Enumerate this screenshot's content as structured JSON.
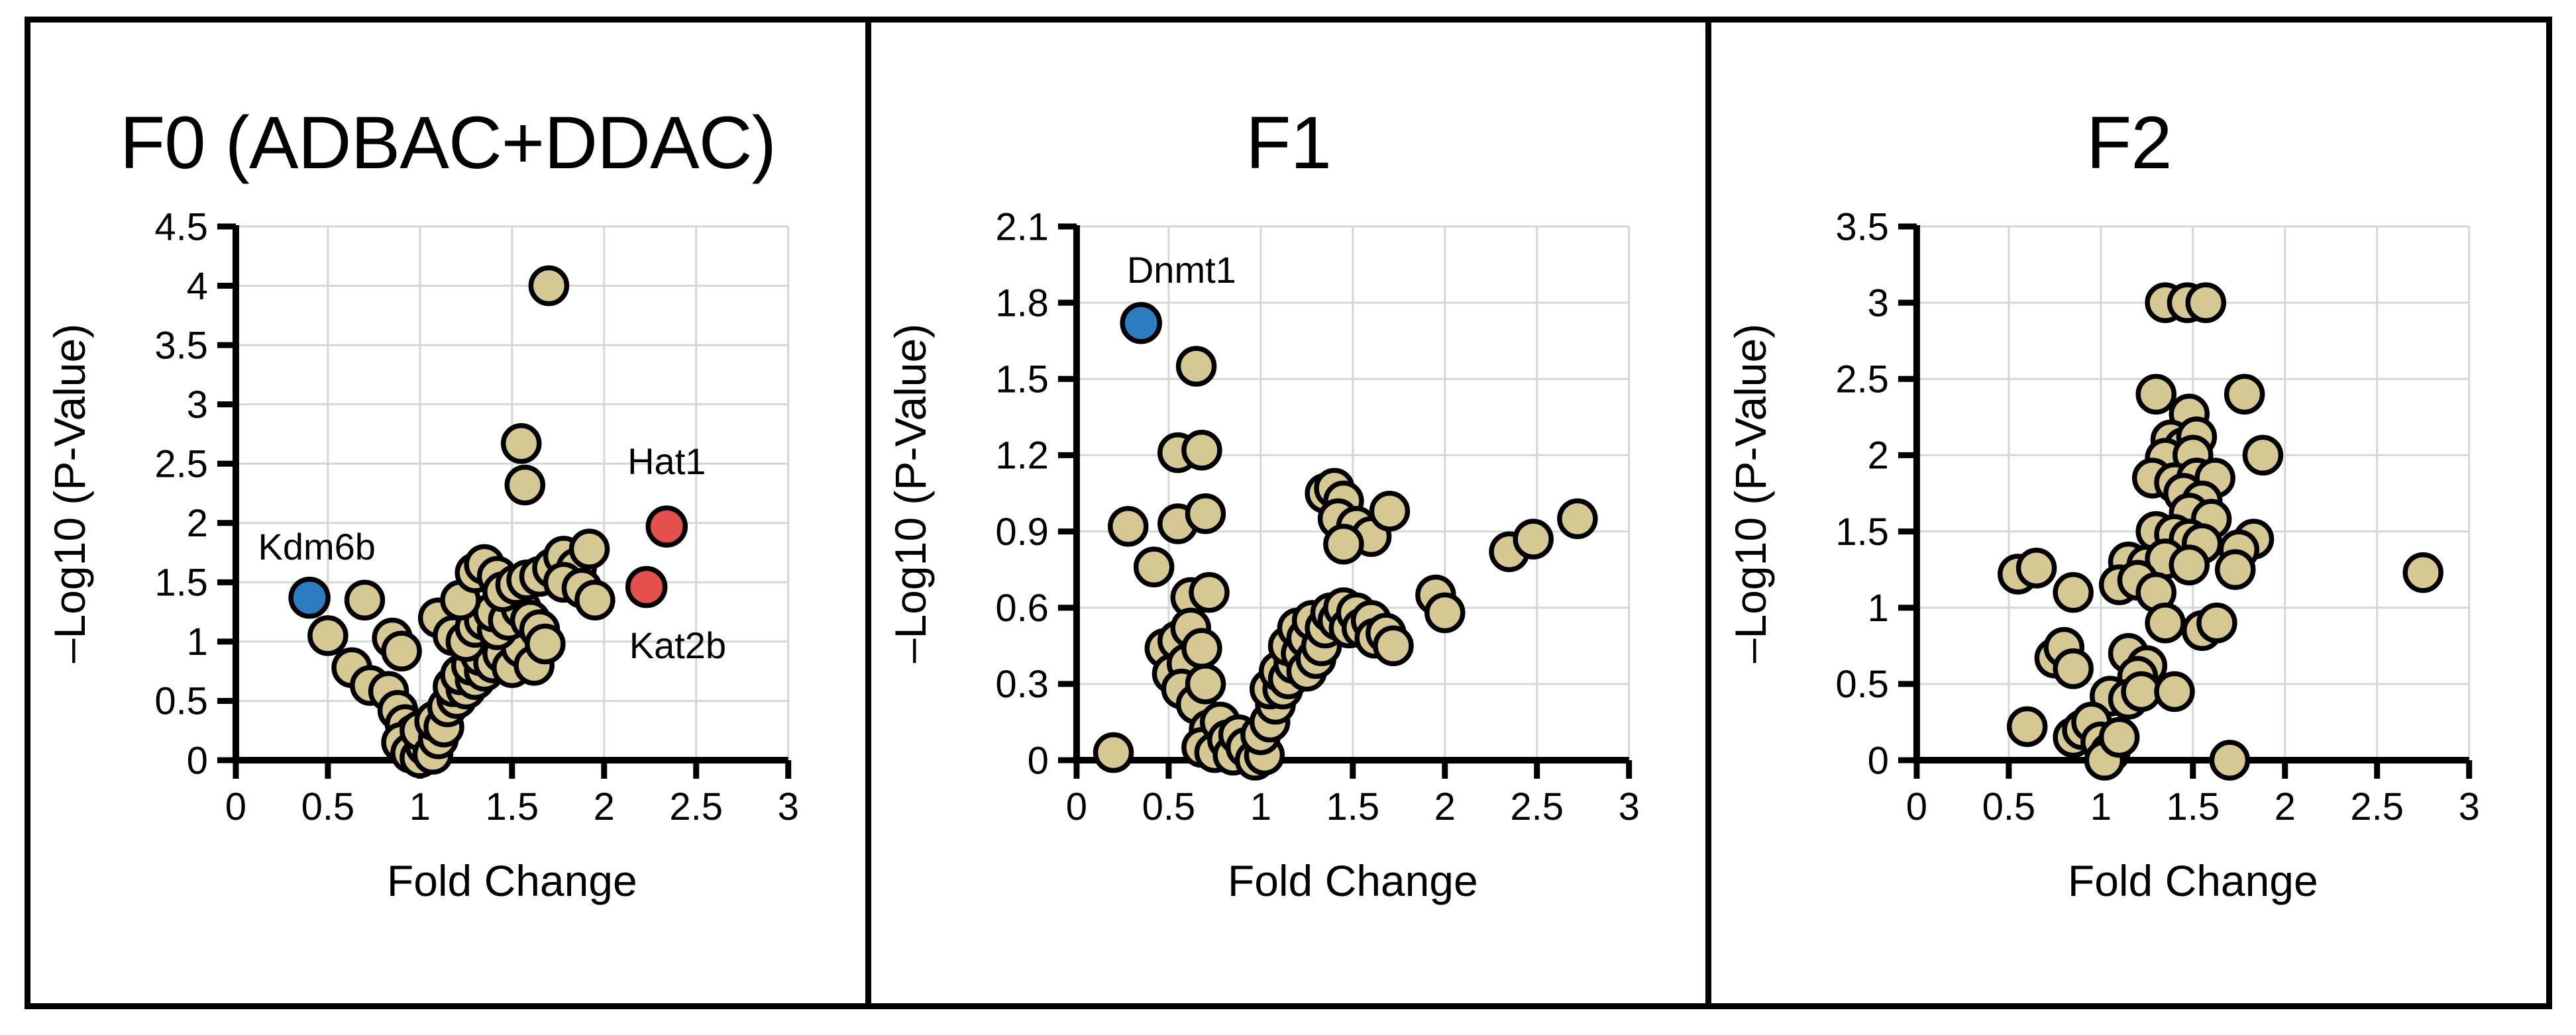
{
  "figure": {
    "style": {
      "background": "#ffffff",
      "frame_color": "#000000",
      "grid_color": "#d6d6d6",
      "axis_color": "#000000",
      "text_color": "#000000",
      "marker_stroke": "#000000",
      "default_marker_fill": "#d5c892",
      "highlight_down_fill": "#2b7dbf",
      "highlight_up_fill": "#e4504b"
    }
  },
  "chart_data": [
    {
      "type": "scatter",
      "title": "F0 (ADBAC+DDAC)",
      "xlabel": "Fold Change",
      "ylabel": "–Log10 (P-Value)",
      "xlim": [
        0,
        3
      ],
      "ylim": [
        0,
        4.5
      ],
      "grid": true,
      "legend": "none",
      "x_ticks": {
        "values": [
          0,
          0.5,
          1,
          1.5,
          2,
          2.5,
          3
        ],
        "labels": [
          "0",
          "0.5",
          "1",
          "1.5",
          "2",
          "2.5",
          "3"
        ]
      },
      "y_ticks": {
        "values": [
          0,
          0.5,
          1,
          1.5,
          2,
          2.5,
          3,
          3.5,
          4,
          4.5
        ],
        "labels": [
          "0",
          "0.5",
          "1",
          "1.5",
          "2",
          "2.5",
          "3",
          "3.5",
          "4",
          "4.5"
        ]
      },
      "series": [
        {
          "name": "proteins",
          "color": "#d5c892",
          "points": [
            [
              1.7,
              4.0
            ],
            [
              1.55,
              2.67
            ],
            [
              1.57,
              2.32
            ],
            [
              0.5,
              1.05
            ],
            [
              0.7,
              1.35
            ],
            [
              0.63,
              0.78
            ],
            [
              0.73,
              0.63
            ],
            [
              0.85,
              1.03
            ],
            [
              0.9,
              0.92
            ],
            [
              0.83,
              0.58
            ],
            [
              0.88,
              0.42
            ],
            [
              0.92,
              0.3
            ],
            [
              0.97,
              0.22
            ],
            [
              0.9,
              0.15
            ],
            [
              0.95,
              0.06
            ],
            [
              1.0,
              0.02
            ],
            [
              1.03,
              0.12
            ],
            [
              1.0,
              0.25
            ],
            [
              1.07,
              0.05
            ],
            [
              1.1,
              0.18
            ],
            [
              1.08,
              0.33
            ],
            [
              1.13,
              0.28
            ],
            [
              1.15,
              0.45
            ],
            [
              1.2,
              0.52
            ],
            [
              1.18,
              0.62
            ],
            [
              1.25,
              0.6
            ],
            [
              1.22,
              0.72
            ],
            [
              1.3,
              0.68
            ],
            [
              1.28,
              0.8
            ],
            [
              1.35,
              0.75
            ],
            [
              1.33,
              0.88
            ],
            [
              1.4,
              0.82
            ],
            [
              1.45,
              0.9
            ],
            [
              1.5,
              0.78
            ],
            [
              1.55,
              0.95
            ],
            [
              1.62,
              0.8
            ],
            [
              1.1,
              1.2
            ],
            [
              1.18,
              1.05
            ],
            [
              1.25,
              1.0
            ],
            [
              1.3,
              1.12
            ],
            [
              1.35,
              1.18
            ],
            [
              1.42,
              1.1
            ],
            [
              1.4,
              1.25
            ],
            [
              1.48,
              1.18
            ],
            [
              1.55,
              1.28
            ],
            [
              1.6,
              1.18
            ],
            [
              1.65,
              1.1
            ],
            [
              1.68,
              0.98
            ],
            [
              1.22,
              1.35
            ],
            [
              1.3,
              1.58
            ],
            [
              1.35,
              1.65
            ],
            [
              1.42,
              1.55
            ],
            [
              1.45,
              1.42
            ],
            [
              1.52,
              1.48
            ],
            [
              1.58,
              1.52
            ],
            [
              1.65,
              1.55
            ],
            [
              1.72,
              1.62
            ],
            [
              1.78,
              1.72
            ],
            [
              1.85,
              1.62
            ],
            [
              1.78,
              1.5
            ],
            [
              1.88,
              1.45
            ],
            [
              1.92,
              1.78
            ],
            [
              1.95,
              1.35
            ]
          ]
        },
        {
          "name": "highlighted-decreased",
          "color": "#2b7dbf",
          "points": [
            [
              0.4,
              1.37
            ]
          ]
        },
        {
          "name": "highlighted-increased",
          "color": "#e4504b",
          "points": [
            [
              2.34,
              1.97
            ],
            [
              2.23,
              1.46
            ]
          ]
        }
      ],
      "annotations": [
        {
          "text": "Kdm6b",
          "x": 0.44,
          "y": 1.8
        },
        {
          "text": "Hat1",
          "x": 2.34,
          "y": 2.52
        },
        {
          "text": "Kat2b",
          "x": 2.4,
          "y": 0.97
        }
      ]
    },
    {
      "type": "scatter",
      "title": "F1",
      "xlabel": "Fold Change",
      "ylabel": "–Log10 (P-Value)",
      "xlim": [
        0,
        3
      ],
      "ylim": [
        0,
        2.1
      ],
      "grid": true,
      "legend": "none",
      "x_ticks": {
        "values": [
          0,
          0.5,
          1,
          1.5,
          2,
          2.5,
          3
        ],
        "labels": [
          "0",
          "0.5",
          "1",
          "1.5",
          "2",
          "2.5",
          "3"
        ]
      },
      "y_ticks": {
        "values": [
          0,
          0.3,
          0.6,
          0.9,
          1.2,
          1.5,
          1.8,
          2.1
        ],
        "labels": [
          "0",
          "0.3",
          "0.6",
          "0.9",
          "1.2",
          "1.5",
          "1.8",
          "2.1"
        ]
      },
      "series": [
        {
          "name": "proteins",
          "color": "#d5c892",
          "points": [
            [
              0.65,
              1.55
            ],
            [
              0.55,
              1.21
            ],
            [
              0.68,
              1.22
            ],
            [
              0.28,
              0.92
            ],
            [
              0.55,
              0.93
            ],
            [
              0.7,
              0.97
            ],
            [
              0.42,
              0.76
            ],
            [
              0.62,
              0.64
            ],
            [
              0.72,
              0.66
            ],
            [
              0.2,
              0.03
            ],
            [
              0.48,
              0.44
            ],
            [
              0.55,
              0.47
            ],
            [
              0.62,
              0.52
            ],
            [
              0.52,
              0.34
            ],
            [
              0.6,
              0.38
            ],
            [
              0.68,
              0.44
            ],
            [
              0.57,
              0.28
            ],
            [
              0.65,
              0.22
            ],
            [
              0.7,
              0.3
            ],
            [
              0.72,
              0.12
            ],
            [
              0.68,
              0.05
            ],
            [
              0.75,
              0.03
            ],
            [
              0.78,
              0.15
            ],
            [
              0.82,
              0.08
            ],
            [
              0.85,
              0.02
            ],
            [
              0.88,
              0.1
            ],
            [
              0.92,
              0.05
            ],
            [
              0.97,
              0.0
            ],
            [
              1.02,
              0.02
            ],
            [
              1.0,
              0.1
            ],
            [
              1.05,
              0.15
            ],
            [
              1.08,
              0.22
            ],
            [
              1.05,
              0.28
            ],
            [
              1.12,
              0.28
            ],
            [
              1.1,
              0.35
            ],
            [
              1.15,
              0.32
            ],
            [
              1.18,
              0.38
            ],
            [
              1.15,
              0.45
            ],
            [
              1.22,
              0.42
            ],
            [
              1.2,
              0.52
            ],
            [
              1.25,
              0.48
            ],
            [
              1.28,
              0.55
            ],
            [
              1.25,
              0.35
            ],
            [
              1.3,
              0.4
            ],
            [
              1.33,
              0.45
            ],
            [
              1.35,
              0.52
            ],
            [
              1.38,
              0.58
            ],
            [
              1.42,
              0.55
            ],
            [
              1.45,
              0.6
            ],
            [
              1.48,
              0.52
            ],
            [
              1.52,
              0.58
            ],
            [
              1.55,
              0.52
            ],
            [
              1.6,
              0.55
            ],
            [
              1.62,
              0.48
            ],
            [
              1.68,
              0.5
            ],
            [
              1.72,
              0.45
            ],
            [
              1.35,
              1.05
            ],
            [
              1.4,
              1.07
            ],
            [
              1.45,
              1.02
            ],
            [
              1.42,
              0.95
            ],
            [
              1.52,
              0.92
            ],
            [
              1.6,
              0.88
            ],
            [
              1.45,
              0.85
            ],
            [
              1.7,
              0.98
            ],
            [
              1.95,
              0.65
            ],
            [
              2.0,
              0.58
            ],
            [
              2.35,
              0.82
            ],
            [
              2.48,
              0.87
            ],
            [
              2.72,
              0.95
            ]
          ]
        },
        {
          "name": "highlighted-decreased",
          "color": "#2b7dbf",
          "points": [
            [
              0.35,
              1.72
            ]
          ]
        }
      ],
      "annotations": [
        {
          "text": "Dnmt1",
          "x": 0.57,
          "y": 1.93
        }
      ]
    },
    {
      "type": "scatter",
      "title": "F2",
      "xlabel": "Fold Change",
      "ylabel": "–Log10 (P-Value)",
      "xlim": [
        0,
        3
      ],
      "ylim": [
        0,
        3.5
      ],
      "grid": true,
      "legend": "none",
      "x_ticks": {
        "values": [
          0,
          0.5,
          1,
          1.5,
          2,
          2.5,
          3
        ],
        "labels": [
          "0",
          "0.5",
          "1",
          "1.5",
          "2",
          "2.5",
          "3"
        ]
      },
      "y_ticks": {
        "values": [
          0,
          0.5,
          1,
          1.5,
          2,
          2.5,
          3,
          3.5
        ],
        "labels": [
          "0",
          "0.5",
          "1",
          "1.5",
          "2",
          "2.5",
          "3",
          "3.5"
        ]
      },
      "series": [
        {
          "name": "proteins",
          "color": "#d5c892",
          "points": [
            [
              1.35,
              3.0
            ],
            [
              1.47,
              3.0
            ],
            [
              1.57,
              3.0
            ],
            [
              1.3,
              2.4
            ],
            [
              1.78,
              2.4
            ],
            [
              1.48,
              2.27
            ],
            [
              1.38,
              2.1
            ],
            [
              1.45,
              2.05
            ],
            [
              1.52,
              2.12
            ],
            [
              1.35,
              1.98
            ],
            [
              1.5,
              2.0
            ],
            [
              1.88,
              2.0
            ],
            [
              1.28,
              1.85
            ],
            [
              1.4,
              1.82
            ],
            [
              1.52,
              1.85
            ],
            [
              1.62,
              1.85
            ],
            [
              1.45,
              1.75
            ],
            [
              1.55,
              1.7
            ],
            [
              1.48,
              1.62
            ],
            [
              1.6,
              1.58
            ],
            [
              1.3,
              1.5
            ],
            [
              1.4,
              1.48
            ],
            [
              1.48,
              1.45
            ],
            [
              1.55,
              1.42
            ],
            [
              1.83,
              1.45
            ],
            [
              1.75,
              1.38
            ],
            [
              1.15,
              1.3
            ],
            [
              1.25,
              1.28
            ],
            [
              1.35,
              1.32
            ],
            [
              1.48,
              1.28
            ],
            [
              1.73,
              1.25
            ],
            [
              2.75,
              1.23
            ],
            [
              0.55,
              1.22
            ],
            [
              0.65,
              1.26
            ],
            [
              0.85,
              1.1
            ],
            [
              1.1,
              1.15
            ],
            [
              1.2,
              1.18
            ],
            [
              1.3,
              1.1
            ],
            [
              1.35,
              0.9
            ],
            [
              1.55,
              0.85
            ],
            [
              1.63,
              0.9
            ],
            [
              0.75,
              0.67
            ],
            [
              0.8,
              0.74
            ],
            [
              0.85,
              0.6
            ],
            [
              1.15,
              0.7
            ],
            [
              1.25,
              0.62
            ],
            [
              1.2,
              0.55
            ],
            [
              1.05,
              0.42
            ],
            [
              1.15,
              0.4
            ],
            [
              1.22,
              0.45
            ],
            [
              1.4,
              0.45
            ],
            [
              0.6,
              0.22
            ],
            [
              0.85,
              0.15
            ],
            [
              0.9,
              0.2
            ],
            [
              0.95,
              0.25
            ],
            [
              1.0,
              0.12
            ],
            [
              1.05,
              0.05
            ],
            [
              1.02,
              0.0
            ],
            [
              1.1,
              0.15
            ],
            [
              1.7,
              0.0
            ]
          ]
        }
      ],
      "annotations": []
    }
  ]
}
